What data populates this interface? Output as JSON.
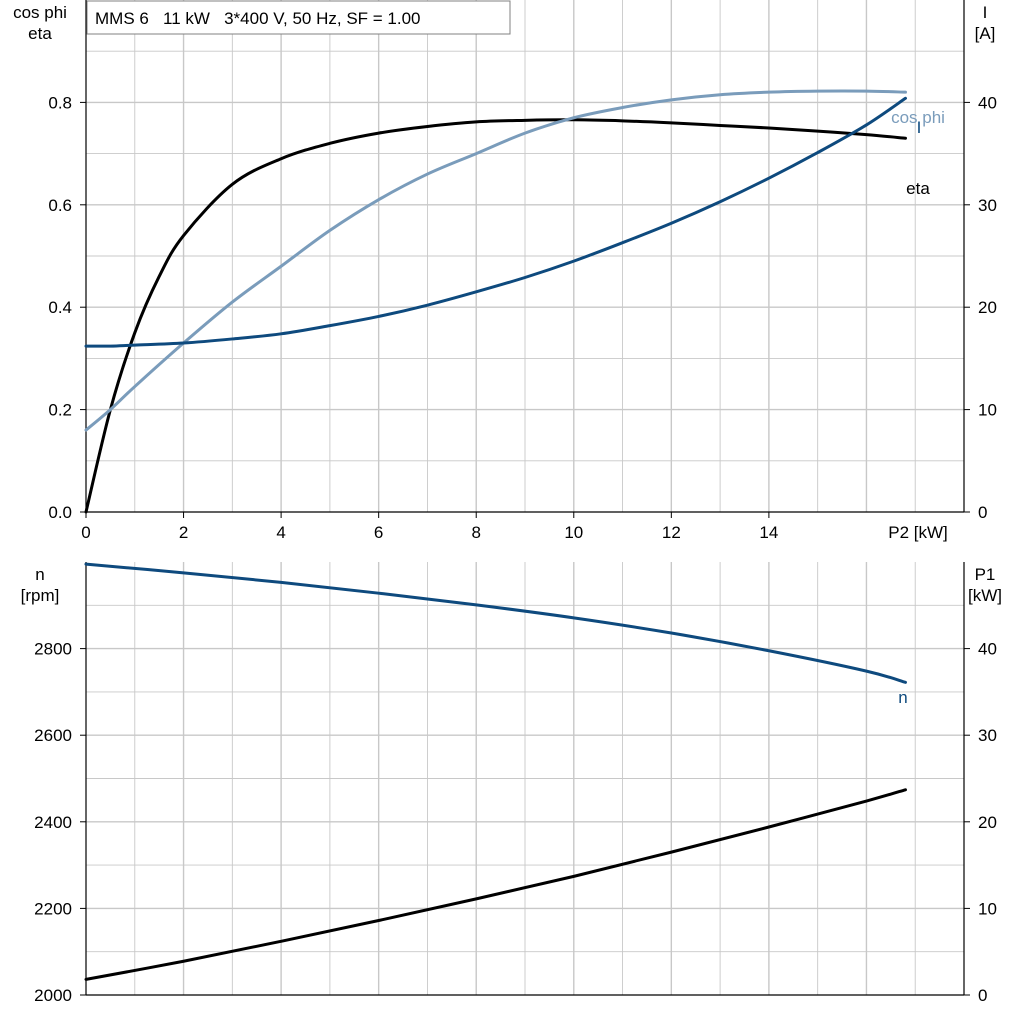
{
  "title": "MMS 6   11 kW   3*400 V, 50 Hz, SF = 1.00",
  "colors": {
    "grid": "#c8c8c8",
    "axis": "#000000",
    "dark": "#000000",
    "navy": "#0e4a7e",
    "light": "#7a9cbb"
  },
  "chart_data": [
    {
      "type": "line",
      "title": "MMS 6   11 kW   3*400 V, 50 Hz, SF = 1.00",
      "xlabel": "P2 [kW]",
      "xlim": [
        0,
        18
      ],
      "xticks": [
        0,
        2,
        4,
        6,
        8,
        10,
        12,
        14
      ],
      "grid": true,
      "left_axis": {
        "label_lines": [
          "cos phi",
          "eta"
        ],
        "lim": [
          0,
          1.0
        ],
        "ticks": [
          0.0,
          0.2,
          0.4,
          0.6,
          0.8
        ],
        "tick_labels": [
          "0.0",
          "0.2",
          "0.4",
          "0.6",
          "0.8"
        ]
      },
      "right_axis": {
        "label_lines": [
          "I",
          "[A]"
        ],
        "lim": [
          0,
          50
        ],
        "ticks": [
          0,
          10,
          20,
          30,
          40
        ],
        "tick_labels": [
          "0",
          "10",
          "20",
          "30",
          "40"
        ]
      },
      "series": [
        {
          "name": "eta",
          "axis": "left",
          "color": "dark",
          "x": [
            0,
            0.5,
            1,
            1.5,
            2,
            3,
            4,
            5,
            6,
            7,
            8,
            9,
            10,
            11,
            12,
            13,
            14,
            15,
            16,
            16.8
          ],
          "y": [
            0.0,
            0.2,
            0.35,
            0.46,
            0.54,
            0.64,
            0.69,
            0.72,
            0.74,
            0.753,
            0.762,
            0.765,
            0.766,
            0.764,
            0.76,
            0.755,
            0.75,
            0.744,
            0.737,
            0.73
          ]
        },
        {
          "name": "cos phi",
          "axis": "left",
          "color": "light",
          "x": [
            0,
            0.5,
            1,
            2,
            3,
            4,
            5,
            6,
            7,
            8,
            9,
            10,
            11,
            12,
            13,
            14,
            15,
            16,
            16.8
          ],
          "y": [
            0.16,
            0.2,
            0.245,
            0.33,
            0.41,
            0.48,
            0.55,
            0.61,
            0.66,
            0.7,
            0.74,
            0.77,
            0.79,
            0.805,
            0.815,
            0.82,
            0.822,
            0.822,
            0.82
          ]
        },
        {
          "name": "I",
          "axis": "right",
          "color": "navy",
          "x": [
            0,
            0.5,
            1,
            2,
            3,
            4,
            5,
            6,
            7,
            8,
            9,
            10,
            11,
            12,
            13,
            14,
            15,
            16,
            16.8
          ],
          "y": [
            16.2,
            16.2,
            16.3,
            16.5,
            16.9,
            17.4,
            18.2,
            19.1,
            20.2,
            21.5,
            22.9,
            24.5,
            26.3,
            28.2,
            30.3,
            32.6,
            35.1,
            37.8,
            40.4
          ]
        }
      ]
    },
    {
      "type": "line",
      "xlim": [
        0,
        18
      ],
      "grid": true,
      "left_axis": {
        "label_lines": [
          "n",
          "[rpm]"
        ],
        "lim": [
          2000,
          3000
        ],
        "ticks": [
          2000,
          2200,
          2400,
          2600,
          2800
        ],
        "tick_labels": [
          "2000",
          "2200",
          "2400",
          "2600",
          "2800"
        ]
      },
      "right_axis": {
        "label_lines": [
          "P1",
          "[kW]"
        ],
        "lim": [
          0,
          50
        ],
        "ticks": [
          0,
          10,
          20,
          30,
          40
        ],
        "tick_labels": [
          "0",
          "10",
          "20",
          "30",
          "40"
        ]
      },
      "series": [
        {
          "name": "n",
          "axis": "left",
          "color": "navy",
          "x": [
            0,
            2,
            4,
            6,
            8,
            10,
            12,
            14,
            16,
            16.8
          ],
          "y": [
            2995,
            2975,
            2953,
            2928,
            2901,
            2871,
            2836,
            2795,
            2748,
            2722
          ]
        },
        {
          "name": "P1",
          "axis": "right",
          "color": "dark",
          "x": [
            0,
            2,
            4,
            6,
            8,
            10,
            12,
            14,
            16,
            16.8
          ],
          "y": [
            1.8,
            3.9,
            6.2,
            8.6,
            11.1,
            13.7,
            16.5,
            19.4,
            22.4,
            23.7
          ]
        }
      ]
    }
  ]
}
